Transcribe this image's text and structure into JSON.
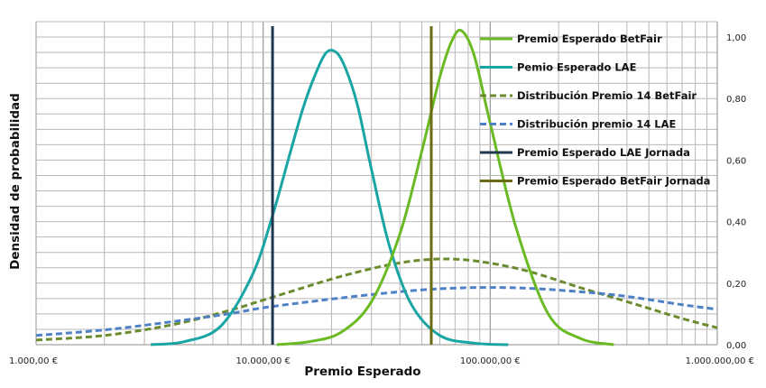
{
  "chart_data": {
    "type": "line",
    "title": "",
    "xlabel": "Premio Esperado",
    "ylabel": "Densidad de probabilidad",
    "x_scale": "log",
    "xlim": [
      1000,
      1000000
    ],
    "ylim": [
      0,
      1.05
    ],
    "x_ticks": [
      1000,
      10000,
      100000,
      1000000
    ],
    "x_tick_labels": [
      "1.000,00 €",
      "10.000,00 €",
      "100.000,00 €",
      "1.000.000,00 €"
    ],
    "y_ticks": [
      0,
      0.2,
      0.4,
      0.6,
      0.8,
      1.0
    ],
    "y_tick_labels": [
      "0,00",
      "0,20",
      "0,40",
      "0,60",
      "0,80",
      "1,00"
    ],
    "y_axis_side": "right",
    "grid": true,
    "legend_position": "top-right",
    "series": [
      {
        "name": "Premio Esperado BetFair",
        "style": "solid",
        "color": "#6aba23",
        "x": [
          11500,
          16000,
          22000,
          30000,
          40000,
          50000,
          60000,
          68000,
          75000,
          85000,
          100000,
          130000,
          180000,
          250000,
          350000
        ],
        "y": [
          0.0,
          0.01,
          0.04,
          0.14,
          0.36,
          0.63,
          0.87,
          0.99,
          1.02,
          0.94,
          0.72,
          0.38,
          0.1,
          0.02,
          0.0
        ]
      },
      {
        "name": "Pemio Esperado LAE",
        "style": "solid",
        "color": "#1aa5a5",
        "x": [
          3200,
          4500,
          6500,
          9000,
          11000,
          13000,
          15000,
          17000,
          19000,
          21000,
          23000,
          26000,
          30000,
          36000,
          45000,
          60000,
          85000,
          120000
        ],
        "y": [
          0.0,
          0.01,
          0.06,
          0.23,
          0.42,
          0.61,
          0.77,
          0.88,
          0.95,
          0.95,
          0.9,
          0.78,
          0.57,
          0.32,
          0.13,
          0.03,
          0.005,
          0.0
        ]
      },
      {
        "name": "Distribución Premio 14 BetFair",
        "style": "dashed",
        "color": "#6b8b2f",
        "x": [
          1000,
          2000,
          4000,
          7000,
          10000,
          15000,
          22000,
          35000,
          50000,
          70000,
          100000,
          150000,
          250000,
          400000,
          700000,
          1000000
        ],
        "y": [
          0.015,
          0.03,
          0.065,
          0.11,
          0.145,
          0.185,
          0.222,
          0.258,
          0.275,
          0.278,
          0.265,
          0.237,
          0.185,
          0.14,
          0.085,
          0.055
        ]
      },
      {
        "name": "Distribución premio 14 LAE",
        "style": "dashed",
        "color": "#4f81c7",
        "x": [
          1000,
          2000,
          4000,
          7000,
          10000,
          15000,
          22000,
          35000,
          50000,
          70000,
          100000,
          150000,
          250000,
          400000,
          700000,
          1000000
        ],
        "y": [
          0.03,
          0.048,
          0.075,
          0.1,
          0.12,
          0.137,
          0.152,
          0.168,
          0.178,
          0.184,
          0.186,
          0.183,
          0.172,
          0.157,
          0.13,
          0.115
        ]
      }
    ],
    "vertical_lines": [
      {
        "name": "Premio Esperado LAE Jornada",
        "x": 11000,
        "color": "#1f3852"
      },
      {
        "name": "Premio Esperado BetFair Jornada",
        "x": 55000,
        "color": "#6b6b12"
      }
    ]
  }
}
